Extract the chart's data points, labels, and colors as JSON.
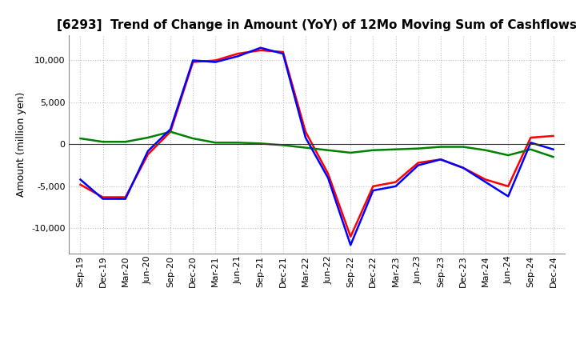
{
  "title": "[6293]  Trend of Change in Amount (YoY) of 12Mo Moving Sum of Cashflows",
  "ylabel": "Amount (million yen)",
  "xlabels": [
    "Sep-19",
    "Dec-19",
    "Mar-20",
    "Jun-20",
    "Sep-20",
    "Dec-20",
    "Mar-21",
    "Jun-21",
    "Sep-21",
    "Dec-21",
    "Mar-22",
    "Jun-22",
    "Sep-22",
    "Dec-22",
    "Mar-23",
    "Jun-23",
    "Sep-23",
    "Dec-23",
    "Mar-24",
    "Jun-24",
    "Sep-24",
    "Dec-24"
  ],
  "operating": [
    -4800,
    -6300,
    -6300,
    -1200,
    1500,
    9800,
    10000,
    10800,
    11200,
    11000,
    1500,
    -3500,
    -11000,
    -5000,
    -4500,
    -2200,
    -1800,
    -2800,
    -4200,
    -5000,
    800,
    1000
  ],
  "investing": [
    700,
    300,
    300,
    800,
    1500,
    700,
    200,
    200,
    100,
    -100,
    -400,
    -700,
    -1000,
    -700,
    -600,
    -500,
    -300,
    -300,
    -700,
    -1300,
    -600,
    -1500
  ],
  "free": [
    -4200,
    -6500,
    -6500,
    -800,
    1800,
    10000,
    9800,
    10500,
    11500,
    10800,
    800,
    -4000,
    -12000,
    -5500,
    -5000,
    -2500,
    -1800,
    -2800,
    -4500,
    -6200,
    200,
    -600
  ],
  "ylim": [
    -13000,
    13000
  ],
  "yticks": [
    -10000,
    -5000,
    0,
    5000,
    10000
  ],
  "operating_color": "#ff0000",
  "investing_color": "#008000",
  "free_color": "#0000ff",
  "background_color": "#ffffff",
  "grid_color": "#c0c0c0",
  "title_fontsize": 11,
  "label_fontsize": 9,
  "tick_fontsize": 8
}
